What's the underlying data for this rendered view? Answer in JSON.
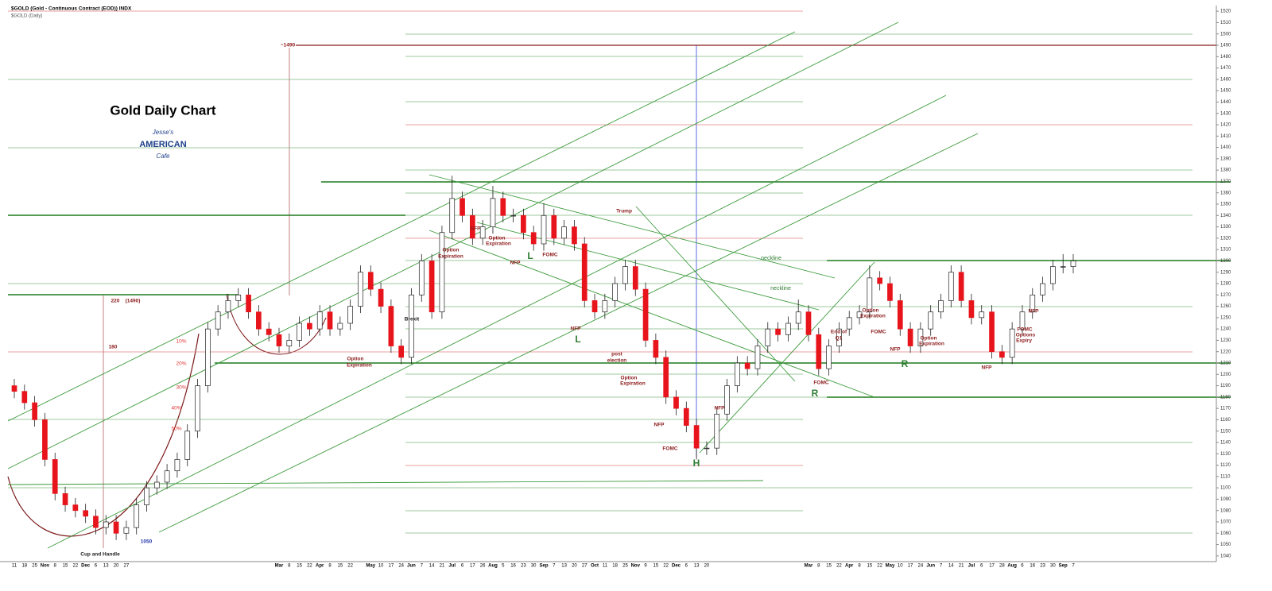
{
  "chart_data": {
    "type": "candlestick",
    "title": "Gold Daily Chart",
    "header": "$GOLD (Gold - Continuous Contract (EOD)) INDX",
    "subheader": "$GOLD (Daily)",
    "logo": [
      "Jesse's",
      "AMERICAN",
      "Cafe"
    ],
    "up_color": "#ffffff",
    "down_color": "#e8141c",
    "categories": [
      "11",
      "18",
      "25",
      "Nov",
      "8",
      "15",
      "22",
      "Dec",
      "6",
      "13",
      "20",
      "27",
      null,
      null,
      null,
      null,
      null,
      null,
      null,
      null,
      null,
      null,
      null,
      null,
      null,
      null,
      "Mar",
      "8",
      "15",
      "22",
      "Apr",
      "8",
      "15",
      "22",
      null,
      "May",
      "10",
      "17",
      "24",
      "Jun",
      "7",
      "14",
      "21",
      "Jul",
      "6",
      "17",
      "26",
      "Aug",
      "5",
      "16",
      "23",
      "30",
      "Sep",
      "7",
      "13",
      "20",
      "27",
      "Oct",
      "11",
      "18",
      "25",
      "Nov",
      "9",
      "15",
      "22",
      "Dec",
      "6",
      "13",
      "20",
      null,
      null,
      null,
      null,
      null,
      null,
      null,
      null,
      null,
      "Mar",
      "8",
      "15",
      "22",
      "Apr",
      "8",
      "15",
      "22",
      "May",
      "10",
      "17",
      "24",
      "Jun",
      "7",
      "14",
      "21",
      "Jul",
      "6",
      "17",
      "28",
      "Aug",
      "6",
      "16",
      "23",
      "30",
      "Sep",
      "7"
    ],
    "open": [
      1190,
      1185,
      1175,
      1160,
      1125,
      1095,
      1085,
      1080,
      1075,
      1065,
      1070,
      1060,
      1065,
      1085,
      1100,
      1105,
      1115,
      1125,
      1150,
      1190,
      1240,
      1255,
      1265,
      1270,
      1255,
      1240,
      1235,
      1225,
      1230,
      1245,
      1240,
      1255,
      1240,
      1245,
      1260,
      1290,
      1275,
      1260,
      1225,
      1215,
      1270,
      1300,
      1255,
      1325,
      1355,
      1340,
      1320,
      1330,
      1355,
      1340,
      1340,
      1325,
      1315,
      1340,
      1320,
      1330,
      1315,
      1265,
      1255,
      1265,
      1280,
      1295,
      1275,
      1230,
      1215,
      1180,
      1170,
      1155,
      1135,
      1135,
      1165,
      1190,
      1210,
      1205,
      1225,
      1240,
      1235,
      1245,
      1255,
      1235,
      1205,
      1225,
      1240,
      1250,
      1255,
      1285,
      1280,
      1265,
      1240,
      1225,
      1240,
      1255,
      1265,
      1290,
      1265,
      1250,
      1255,
      1220,
      1215,
      1240,
      1255,
      1270,
      1280,
      1295,
      1295
    ],
    "high": [
      1196,
      1191,
      1181,
      1166,
      1131,
      1101,
      1091,
      1086,
      1081,
      1076,
      1076,
      1071,
      1091,
      1106,
      1111,
      1121,
      1131,
      1156,
      1196,
      1246,
      1261,
      1271,
      1276,
      1276,
      1261,
      1246,
      1241,
      1236,
      1251,
      1251,
      1261,
      1261,
      1251,
      1266,
      1296,
      1296,
      1281,
      1266,
      1231,
      1276,
      1306,
      1306,
      1331,
      1375,
      1361,
      1346,
      1336,
      1366,
      1361,
      1346,
      1346,
      1331,
      1351,
      1346,
      1336,
      1336,
      1321,
      1271,
      1271,
      1286,
      1301,
      1301,
      1281,
      1236,
      1221,
      1186,
      1176,
      1161,
      1141,
      1171,
      1196,
      1216,
      1216,
      1231,
      1246,
      1246,
      1251,
      1266,
      1261,
      1241,
      1231,
      1246,
      1256,
      1261,
      1296,
      1291,
      1286,
      1271,
      1246,
      1246,
      1261,
      1271,
      1296,
      1296,
      1271,
      1261,
      1261,
      1226,
      1246,
      1261,
      1276,
      1286,
      1301,
      1306,
      1306
    ],
    "low": [
      1179,
      1169,
      1154,
      1119,
      1089,
      1079,
      1074,
      1069,
      1059,
      1059,
      1054,
      1054,
      1059,
      1079,
      1094,
      1099,
      1109,
      1119,
      1144,
      1184,
      1234,
      1249,
      1259,
      1249,
      1234,
      1229,
      1219,
      1219,
      1224,
      1234,
      1234,
      1234,
      1234,
      1239,
      1254,
      1269,
      1254,
      1219,
      1209,
      1209,
      1264,
      1249,
      1249,
      1319,
      1334,
      1314,
      1314,
      1324,
      1334,
      1334,
      1319,
      1309,
      1309,
      1314,
      1314,
      1309,
      1259,
      1249,
      1249,
      1259,
      1274,
      1269,
      1224,
      1209,
      1174,
      1164,
      1149,
      1125,
      1129,
      1129,
      1159,
      1184,
      1199,
      1199,
      1219,
      1229,
      1229,
      1239,
      1229,
      1199,
      1199,
      1219,
      1234,
      1244,
      1249,
      1274,
      1259,
      1234,
      1219,
      1219,
      1234,
      1249,
      1259,
      1259,
      1244,
      1244,
      1214,
      1209,
      1209,
      1234,
      1249,
      1264,
      1274,
      1289,
      1289
    ],
    "close": [
      1185,
      1175,
      1160,
      1125,
      1095,
      1085,
      1080,
      1075,
      1065,
      1070,
      1060,
      1065,
      1085,
      1100,
      1105,
      1115,
      1125,
      1150,
      1190,
      1240,
      1255,
      1265,
      1270,
      1255,
      1240,
      1235,
      1225,
      1230,
      1245,
      1240,
      1255,
      1240,
      1245,
      1260,
      1290,
      1275,
      1260,
      1225,
      1215,
      1270,
      1300,
      1255,
      1325,
      1355,
      1340,
      1320,
      1330,
      1355,
      1340,
      1340,
      1325,
      1315,
      1340,
      1320,
      1330,
      1315,
      1265,
      1255,
      1265,
      1280,
      1295,
      1275,
      1230,
      1215,
      1180,
      1170,
      1155,
      1135,
      1135,
      1165,
      1190,
      1210,
      1205,
      1225,
      1240,
      1235,
      1245,
      1255,
      1235,
      1205,
      1225,
      1240,
      1250,
      1255,
      1285,
      1280,
      1265,
      1240,
      1225,
      1240,
      1255,
      1265,
      1290,
      1265,
      1250,
      1255,
      1220,
      1215,
      1240,
      1255,
      1270,
      1280,
      1295,
      1295,
      1300
    ],
    "ylim": [
      1035,
      1525
    ],
    "yticks": [
      1040,
      1050,
      1060,
      1070,
      1080,
      1090,
      1100,
      1110,
      1120,
      1130,
      1140,
      1150,
      1160,
      1170,
      1180,
      1190,
      1200,
      1210,
      1220,
      1230,
      1240,
      1250,
      1260,
      1270,
      1280,
      1290,
      1300,
      1310,
      1320,
      1330,
      1340,
      1350,
      1360,
      1370,
      1380,
      1390,
      1400,
      1410,
      1420,
      1430,
      1440,
      1450,
      1460,
      1470,
      1480,
      1490,
      1500,
      1510,
      1520
    ],
    "annotations": [
      "~1490",
      "220",
      "(1490)",
      "180",
      "10%",
      "20%",
      "30%",
      "40%",
      "50%",
      "1050",
      "Cup and Handle",
      "Brexit",
      "Option",
      "Expiration",
      "Option",
      "Expiration",
      "NFP",
      "Option",
      "Expiration",
      "NFP",
      "L",
      "FOMC",
      "NFP",
      "L",
      "Trump",
      "post",
      "election",
      "Option",
      "Expiration",
      "NFP",
      "FOMC",
      "H",
      "NFP",
      "neckline",
      "neckline",
      "FOMC",
      "R",
      "End of",
      "Q1",
      "Option",
      "Expiration",
      "FOMC",
      "NFP",
      "R",
      "Option",
      "Expiration",
      "NFP",
      "NFP",
      "FOMC",
      "Options",
      "Expiry"
    ]
  }
}
